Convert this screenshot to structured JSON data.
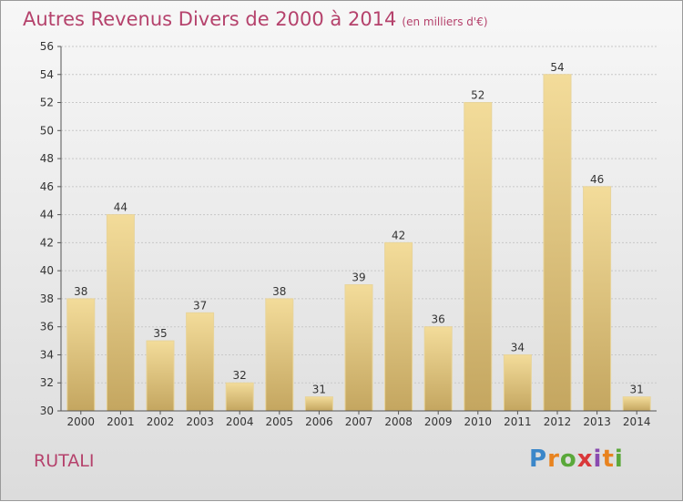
{
  "title": "Autres Revenus Divers de 2000 à 2014",
  "unit_label": "(en milliers d'€)",
  "place": "RUTALI",
  "logo": {
    "text": "Proxiti",
    "letters": [
      "P",
      "r",
      "o",
      "x",
      "i",
      "t",
      "i"
    ]
  },
  "colors": {
    "title": "#b5426c",
    "bar_light": "#f3dc9a",
    "bar_dark": "#c4a660",
    "axis": "#555555",
    "grid": "#c8c8c8"
  },
  "chart_data": {
    "type": "bar",
    "categories": [
      "2000",
      "2001",
      "2002",
      "2003",
      "2004",
      "2005",
      "2006",
      "2007",
      "2008",
      "2009",
      "2010",
      "2011",
      "2012",
      "2013",
      "2014"
    ],
    "values": [
      38,
      44,
      35,
      37,
      32,
      38,
      31,
      39,
      42,
      36,
      52,
      34,
      54,
      46,
      31
    ],
    "ylim": [
      30,
      56
    ],
    "yticks": [
      30,
      32,
      34,
      36,
      38,
      40,
      42,
      44,
      46,
      48,
      50,
      52,
      54,
      56
    ],
    "grid": true,
    "title": "Autres Revenus Divers de 2000 à 2014",
    "xlabel": "",
    "ylabel": ""
  }
}
